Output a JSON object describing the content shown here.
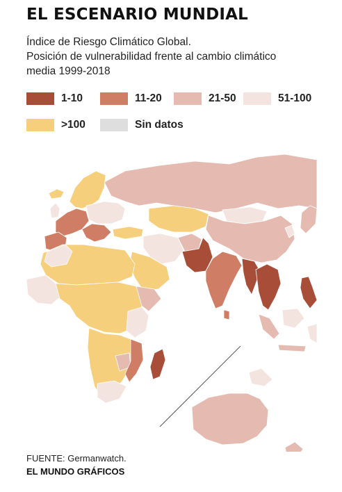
{
  "header": {
    "title": "EL ESCENARIO MUNDIAL",
    "subtitle_lines": [
      "Índice de Riesgo Climático Global.",
      "Posición de vulnerabilidad frente al cambio climático",
      "media 1999-2018"
    ]
  },
  "legend": [
    {
      "label": "1-10",
      "color": "#a84e38"
    },
    {
      "label": "11-20",
      "color": "#cf7d64"
    },
    {
      "label": "21-50",
      "color": "#e5bab0"
    },
    {
      "label": "51-100",
      "color": "#f4e4df"
    },
    {
      "label": ">100",
      "color": "#f6cf7d"
    },
    {
      "label": "Sin datos",
      "color": "#dedede"
    }
  ],
  "footer": {
    "source": "FUENTE: Germanwatch.",
    "credit": "EL MUNDO GRÁFICOS"
  }
}
